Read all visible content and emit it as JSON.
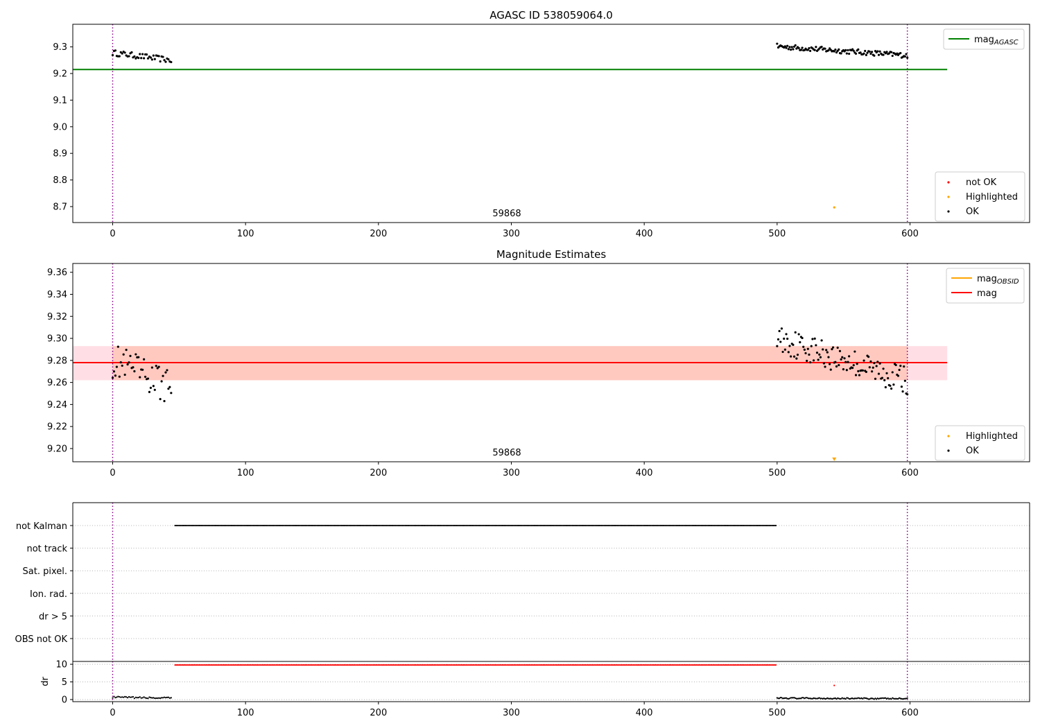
{
  "chart_data": [
    {
      "type": "scatter",
      "title": "AGASC ID 538059064.0",
      "xlabel": "",
      "ylabel": "",
      "xlim": [
        -30,
        690
      ],
      "ylim": [
        8.64,
        9.385
      ],
      "x_ticks": [
        0,
        100,
        200,
        300,
        400,
        500,
        600
      ],
      "x_tick_labels": [
        "0",
        "100",
        "200",
        "300",
        "400",
        "500",
        "600"
      ],
      "y_ticks": [
        8.7,
        8.8,
        8.9,
        9.0,
        9.1,
        9.2,
        9.3
      ],
      "y_tick_labels": [
        "8.7",
        "8.8",
        "8.9",
        "9.0",
        "9.1",
        "9.2",
        "9.3"
      ],
      "annotation": "59868",
      "vlines": [
        0,
        598
      ],
      "hline": {
        "name": "mag_AGASC",
        "y": 9.215,
        "x": [
          -30,
          628
        ],
        "color": "#008000"
      },
      "legends": {
        "top-right": [
          {
            "main": "mag",
            "sub": "AGASC",
            "kind": "line",
            "color": "#008000"
          }
        ],
        "bottom-right": [
          {
            "main": "not OK",
            "kind": "dot",
            "color": "#ff0000"
          },
          {
            "main": "Highlighted",
            "kind": "dot",
            "color": "#ffa500"
          },
          {
            "main": "OK",
            "kind": "dot",
            "color": "#000000"
          }
        ]
      },
      "series": [
        {
          "name": "OK",
          "color": "#000000",
          "segments": [
            {
              "x0": 0,
              "x1": 44,
              "n": 44,
              "y_start": 9.278,
              "y_end": 9.25,
              "amp": 0.011
            },
            {
              "x0": 500,
              "x1": 598,
              "n": 115,
              "y_start": 9.302,
              "y_end": 9.268,
              "amp": 0.01
            }
          ]
        },
        {
          "name": "Highlighted",
          "color": "#ffa500",
          "points": [
            [
              543,
              8.697
            ]
          ]
        }
      ]
    },
    {
      "type": "scatter",
      "title": "Magnitude Estimates",
      "xlabel": "",
      "ylabel": "",
      "xlim": [
        -30,
        690
      ],
      "ylim": [
        9.188,
        9.368
      ],
      "x_ticks": [
        0,
        100,
        200,
        300,
        400,
        500,
        600
      ],
      "x_tick_labels": [
        "0",
        "100",
        "200",
        "300",
        "400",
        "500",
        "600"
      ],
      "y_ticks": [
        9.2,
        9.22,
        9.24,
        9.26,
        9.28,
        9.3,
        9.32,
        9.34,
        9.36
      ],
      "y_tick_labels": [
        "9.20",
        "9.22",
        "9.24",
        "9.26",
        "9.28",
        "9.30",
        "9.32",
        "9.34",
        "9.36"
      ],
      "annotation": "59868",
      "vlines": [
        0,
        598
      ],
      "bands": [
        {
          "y0": 9.262,
          "y1": 9.293,
          "x": [
            -30,
            628
          ],
          "color": "#ffc0cb",
          "opacity": 0.5
        },
        {
          "y0": 9.262,
          "y1": 9.293,
          "x": [
            0,
            598
          ],
          "color": "#ffa07a",
          "opacity": 0.35
        }
      ],
      "hlines": [
        {
          "name": "mag_OBSID",
          "y": 9.278,
          "x": [
            0,
            598
          ],
          "color": "#ffa500"
        },
        {
          "name": "mag",
          "y": 9.278,
          "x": [
            -30,
            628
          ],
          "color": "#ff0000"
        }
      ],
      "legends": {
        "top-right": [
          {
            "main": "mag",
            "sub": "OBSID",
            "kind": "line",
            "color": "#ffa500"
          },
          {
            "main": "mag",
            "kind": "line",
            "color": "#ff0000"
          }
        ],
        "bottom-right": [
          {
            "main": "Highlighted",
            "kind": "dot",
            "color": "#ffa500"
          },
          {
            "main": "OK",
            "kind": "dot",
            "color": "#000000"
          }
        ]
      },
      "series": [
        {
          "name": "OK",
          "color": "#000000",
          "segments": [
            {
              "x0": 0,
              "x1": 44,
              "n": 44,
              "y_start": 9.28,
              "y_end": 9.255,
              "amp": 0.016
            },
            {
              "x0": 500,
              "x1": 598,
              "n": 115,
              "y_start": 9.3,
              "y_end": 9.262,
              "amp": 0.013
            }
          ]
        },
        {
          "name": "Highlighted",
          "color": "#ffa500",
          "points": [
            [
              543,
              9.19
            ]
          ],
          "marker": "triangle-down"
        }
      ]
    },
    {
      "type": "scatter",
      "title": "",
      "xlabel": "",
      "ylabel": "",
      "xlim": [
        -30,
        690
      ],
      "categories": [
        "not Kalman",
        "not track",
        "Sat. pixel.",
        "Ion. rad.",
        "dr > 5",
        "OBS not OK"
      ],
      "vlines": [
        0,
        598
      ],
      "series": [
        {
          "name": "not Kalman",
          "color": "#000000",
          "x_range": [
            47,
            499
          ],
          "step": 1
        }
      ]
    },
    {
      "type": "scatter",
      "title": "",
      "xlabel": "",
      "ylabel": "dr",
      "xlim": [
        -30,
        690
      ],
      "ylim": [
        -0.6,
        10.8
      ],
      "x_ticks": [
        0,
        100,
        200,
        300,
        400,
        500,
        600
      ],
      "x_tick_labels": [
        "0",
        "100",
        "200",
        "300",
        "400",
        "500",
        "600"
      ],
      "y_ticks": [
        0,
        5,
        10
      ],
      "y_tick_labels": [
        "0",
        "5",
        "10"
      ],
      "vlines": [
        0,
        598
      ],
      "series": [
        {
          "name": "OK",
          "color": "#000000",
          "segments": [
            {
              "x0": 0,
              "x1": 44,
              "n": 44,
              "y_start": 0.65,
              "y_end": 0.4,
              "amp": 0.22
            },
            {
              "x0": 500,
              "x1": 598,
              "n": 115,
              "y_start": 0.4,
              "y_end": 0.25,
              "amp": 0.18
            }
          ]
        },
        {
          "name": "not OK",
          "color": "#ff0000",
          "x_range": [
            47,
            499
          ],
          "step": 1,
          "y": 9.8
        },
        {
          "name": "not OK",
          "color": "#ff0000",
          "points": [
            [
              543,
              4.0
            ]
          ]
        }
      ]
    }
  ]
}
